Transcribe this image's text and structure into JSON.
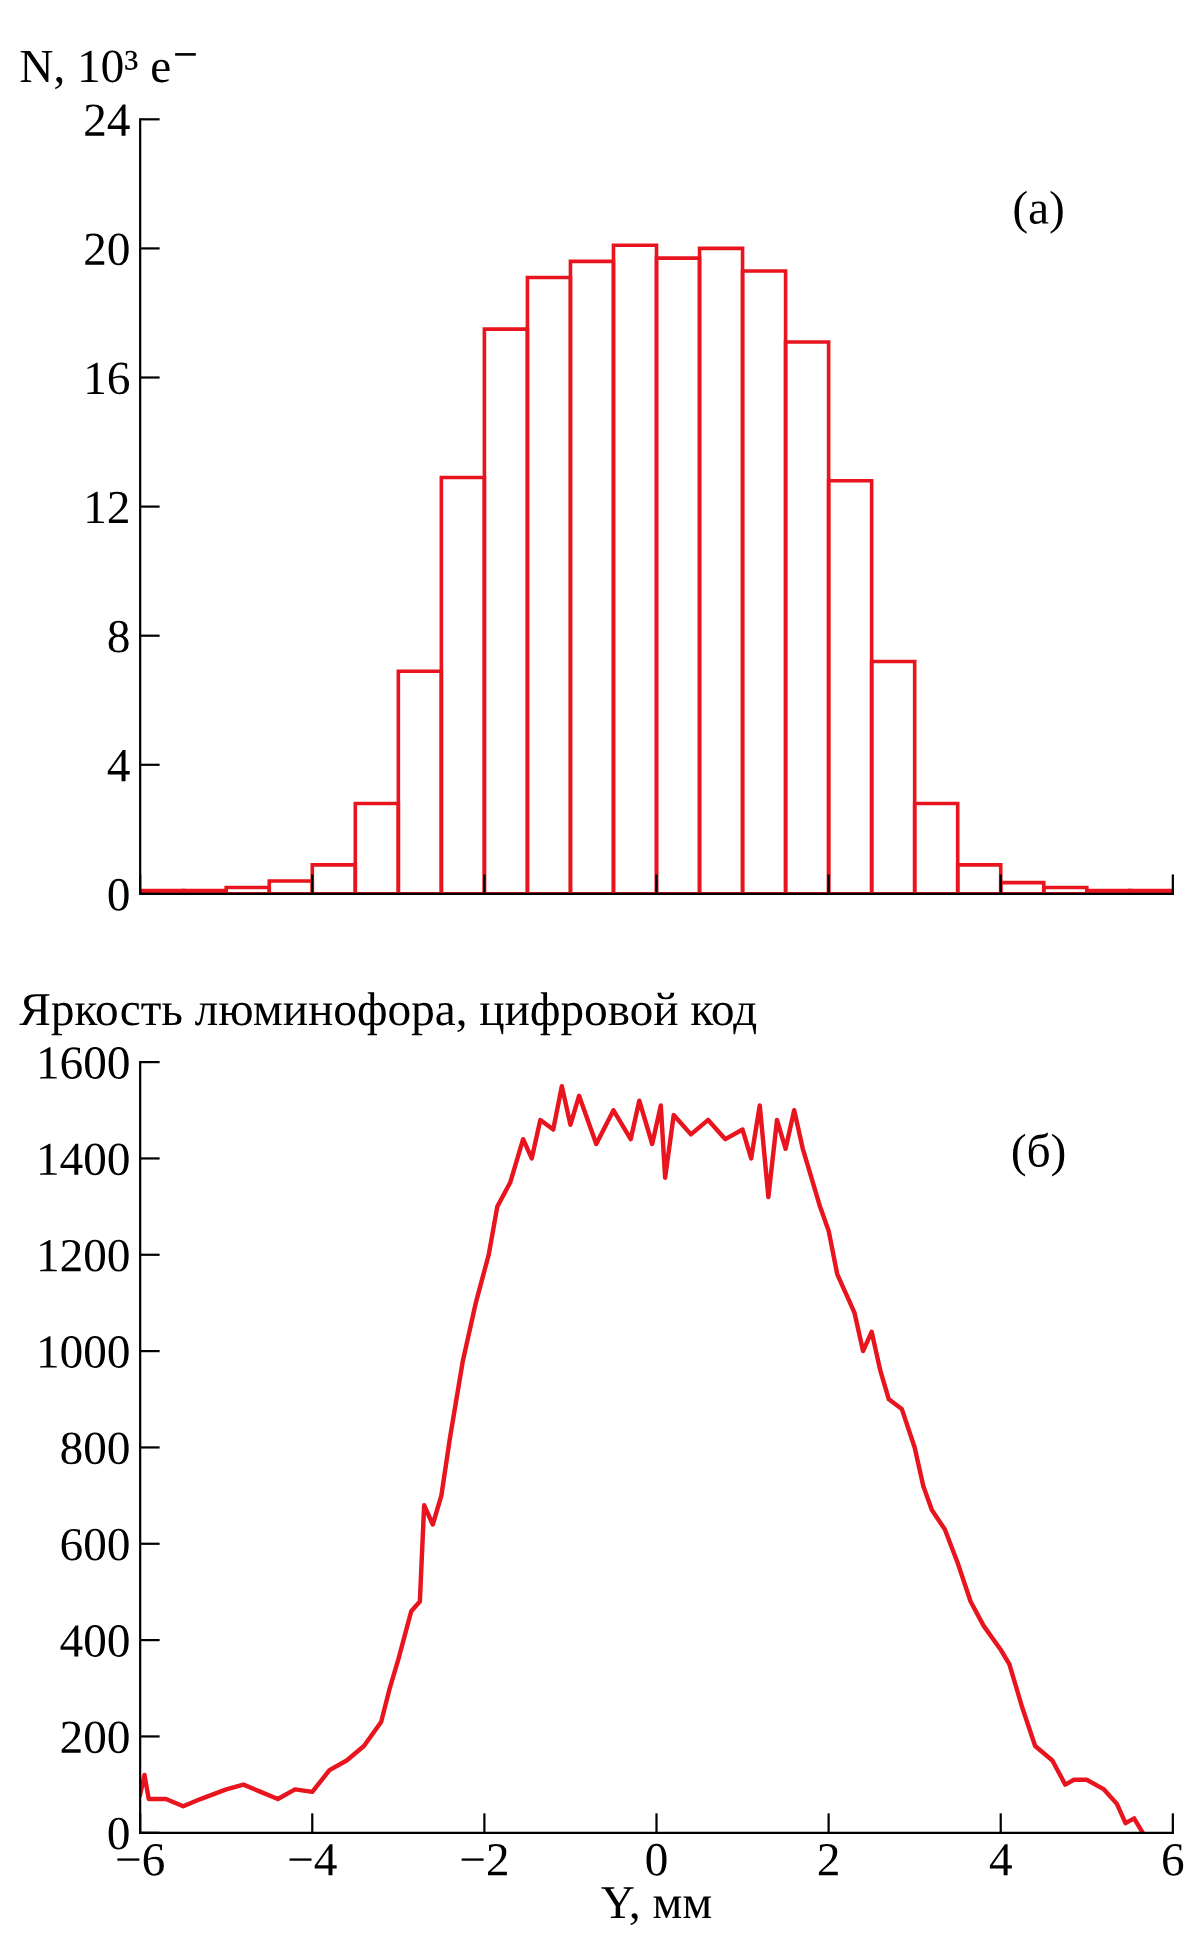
{
  "chart_data": [
    {
      "type": "histogram",
      "ylabel": "N, 10³ e$^{−}$",
      "annotations": [
        "(а)"
      ],
      "color": "#e8141e",
      "bins": [
        -6,
        -5.5,
        -5,
        -4.5,
        -4,
        -3.5,
        -3,
        -2.5,
        -2,
        -1.5,
        -1,
        -0.5,
        0,
        0.5,
        1,
        1.5,
        2,
        2.5,
        3,
        3.5,
        4,
        4.5,
        5,
        5.5,
        6
      ],
      "values": [
        0.1,
        0.1,
        0.2,
        0.4,
        0.9,
        2.8,
        6.9,
        12.9,
        17.5,
        19.1,
        19.6,
        20.1,
        19.7,
        20.0,
        19.3,
        17.1,
        12.8,
        7.2,
        2.8,
        0.9,
        0.35,
        0.2,
        0.1,
        0.1
      ],
      "xlim": [
        -6,
        6
      ],
      "xticks": [
        -6,
        -4,
        -2,
        0,
        2,
        4,
        6
      ],
      "ylim": [
        0,
        24
      ],
      "yticks": [
        0,
        4,
        8,
        12,
        16,
        20,
        24
      ],
      "tick_labels": "y",
      "grid": false,
      "legend": false
    },
    {
      "type": "line",
      "ylabel": "Яркость люминофора, цифровой код",
      "xlabel": "Y, мм",
      "annotations": [
        "(б)"
      ],
      "color": "#e8141e",
      "marker": "none",
      "line_style": "solid",
      "x": [
        -6,
        -5.95,
        -5.9,
        -5.7,
        -5.5,
        -5.3,
        -5.0,
        -4.8,
        -4.6,
        -4.4,
        -4.2,
        -4.0,
        -3.8,
        -3.6,
        -3.4,
        -3.2,
        -3.1,
        -3.0,
        -2.85,
        -2.75,
        -2.7,
        -2.6,
        -2.5,
        -2.4,
        -2.25,
        -2.1,
        -1.95,
        -1.85,
        -1.7,
        -1.55,
        -1.45,
        -1.35,
        -1.2,
        -1.1,
        -1.0,
        -0.9,
        -0.7,
        -0.5,
        -0.3,
        -0.2,
        -0.05,
        0.05,
        0.1,
        0.2,
        0.4,
        0.6,
        0.8,
        1.0,
        1.1,
        1.2,
        1.3,
        1.4,
        1.5,
        1.6,
        1.7,
        1.8,
        1.9,
        2.0,
        2.1,
        2.3,
        2.4,
        2.5,
        2.6,
        2.7,
        2.85,
        3.0,
        3.1,
        3.2,
        3.35,
        3.5,
        3.65,
        3.8,
        4.0,
        4.1,
        4.25,
        4.4,
        4.6,
        4.75,
        4.85,
        5.0,
        5.2,
        5.35,
        5.45,
        5.55,
        5.65
      ],
      "values": [
        80,
        120,
        70,
        70,
        55,
        70,
        90,
        100,
        85,
        70,
        90,
        85,
        130,
        150,
        180,
        230,
        300,
        360,
        460,
        480,
        680,
        640,
        700,
        820,
        980,
        1100,
        1200,
        1300,
        1350,
        1440,
        1400,
        1480,
        1460,
        1550,
        1470,
        1530,
        1430,
        1500,
        1440,
        1520,
        1430,
        1510,
        1360,
        1490,
        1450,
        1480,
        1440,
        1460,
        1400,
        1510,
        1320,
        1480,
        1420,
        1500,
        1420,
        1360,
        1300,
        1250,
        1160,
        1080,
        1000,
        1040,
        960,
        900,
        880,
        800,
        720,
        670,
        630,
        560,
        480,
        430,
        380,
        350,
        260,
        180,
        150,
        100,
        110,
        110,
        90,
        60,
        20,
        30,
        0
      ],
      "xlim": [
        -6,
        6
      ],
      "xticks": [
        {
          "value": -6,
          "label": "−6"
        },
        {
          "value": -4,
          "label": "−4"
        },
        {
          "value": -2,
          "label": "−2"
        },
        0,
        2,
        4,
        6
      ],
      "ylim": [
        0,
        1600
      ],
      "yticks": [
        0,
        200,
        400,
        600,
        800,
        1000,
        1200,
        1400,
        1600
      ],
      "grid": false,
      "legend": false
    }
  ]
}
